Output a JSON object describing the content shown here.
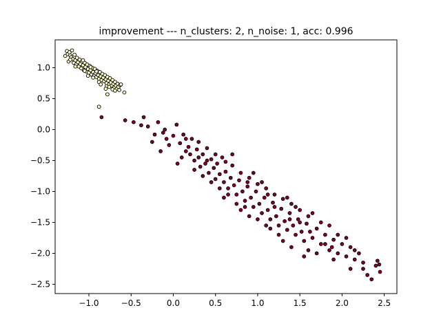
{
  "chart_data": {
    "type": "scatter",
    "title": "improvement --- n_clusters: 2, n_noise: 1, acc: 0.996",
    "xlabel": "",
    "ylabel": "",
    "xlim": [
      -1.4,
      2.65
    ],
    "ylim": [
      -2.65,
      1.45
    ],
    "xticks": [
      -1.0,
      -0.5,
      0.0,
      0.5,
      1.0,
      1.5,
      2.0,
      2.5
    ],
    "yticks": [
      -2.5,
      -2.0,
      -1.5,
      -1.0,
      -0.5,
      0.0,
      0.5,
      1.0
    ],
    "xtick_labels": [
      "−1.0",
      "−0.5",
      "0.0",
      "0.5",
      "1.0",
      "1.5",
      "2.0",
      "2.5"
    ],
    "ytick_labels": [
      "−2.5",
      "−2.0",
      "−1.5",
      "−1.0",
      "−0.5",
      "0.0",
      "0.5",
      "1.0"
    ],
    "grid": false,
    "series": [
      {
        "color": "#ffffcc",
        "edgecolor": "#000000",
        "points": [
          [
            -1.28,
            1.19
          ],
          [
            -1.26,
            1.27
          ],
          [
            -1.25,
            1.22
          ],
          [
            -1.24,
            1.1
          ],
          [
            -1.23,
            1.25
          ],
          [
            -1.22,
            1.2
          ],
          [
            -1.21,
            1.17
          ],
          [
            -1.2,
            1.28
          ],
          [
            -1.19,
            1.14
          ],
          [
            -1.18,
            1.08
          ],
          [
            -1.17,
            1.21
          ],
          [
            -1.16,
            1.12
          ],
          [
            -1.15,
            1.05
          ],
          [
            -1.14,
            1.16
          ],
          [
            -1.13,
            1.09
          ],
          [
            -1.12,
            1.02
          ],
          [
            -1.11,
            1.13
          ],
          [
            -1.1,
            1.06
          ],
          [
            -1.09,
            0.99
          ],
          [
            -1.08,
            1.1
          ],
          [
            -1.07,
            1.04
          ],
          [
            -1.06,
            0.96
          ],
          [
            -1.05,
            1.08
          ],
          [
            -1.04,
            1.01
          ],
          [
            -1.03,
            0.94
          ],
          [
            -1.02,
            1.05
          ],
          [
            -1.01,
            0.98
          ],
          [
            -1.0,
            0.92
          ],
          [
            -0.99,
            1.03
          ],
          [
            -0.98,
            0.96
          ],
          [
            -0.97,
            0.89
          ],
          [
            -0.96,
            1.0
          ],
          [
            -0.95,
            0.93
          ],
          [
            -0.94,
            0.87
          ],
          [
            -0.93,
            0.98
          ],
          [
            -0.92,
            0.91
          ],
          [
            -0.91,
            0.85
          ],
          [
            -0.9,
            0.95
          ],
          [
            -0.89,
            0.88
          ],
          [
            -0.88,
            0.82
          ],
          [
            -0.87,
            0.93
          ],
          [
            -0.86,
            0.86
          ],
          [
            -0.85,
            0.8
          ],
          [
            -0.84,
            0.9
          ],
          [
            -0.83,
            0.84
          ],
          [
            -0.82,
            0.78
          ],
          [
            -0.81,
            0.88
          ],
          [
            -0.8,
            0.81
          ],
          [
            -0.79,
            0.75
          ],
          [
            -0.78,
            0.85
          ],
          [
            -0.77,
            0.79
          ],
          [
            -0.76,
            0.73
          ],
          [
            -0.75,
            0.83
          ],
          [
            -0.74,
            0.76
          ],
          [
            -0.73,
            0.71
          ],
          [
            -0.72,
            0.8
          ],
          [
            -0.71,
            0.74
          ],
          [
            -0.7,
            0.68
          ],
          [
            -0.69,
            0.77
          ],
          [
            -0.68,
            0.71
          ],
          [
            -0.67,
            0.66
          ],
          [
            -0.66,
            0.74
          ],
          [
            -0.65,
            0.69
          ],
          [
            -0.64,
            0.64
          ],
          [
            -0.63,
            0.72
          ],
          [
            -0.62,
            0.73
          ],
          [
            -1.05,
            0.95
          ],
          [
            -0.95,
            0.84
          ],
          [
            -0.88,
            0.77
          ],
          [
            -0.79,
            0.7
          ],
          [
            -0.72,
            0.65
          ],
          [
            -0.69,
            0.63
          ],
          [
            -1.16,
            1.02
          ],
          [
            -1.07,
            1.12
          ],
          [
            -0.98,
            1.01
          ],
          [
            -0.91,
            0.94
          ],
          [
            -0.86,
            0.73
          ],
          [
            -0.8,
            0.66
          ],
          [
            -0.58,
            0.6
          ],
          [
            -0.78,
            0.57
          ],
          [
            -0.88,
            0.37
          ],
          [
            -1.22,
            1.13
          ],
          [
            -1.01,
            0.87
          ],
          [
            -0.76,
            0.69
          ]
        ]
      },
      {
        "color": "#800026",
        "edgecolor": "#000000",
        "points": [
          [
            -0.85,
            0.2
          ],
          [
            -0.57,
            0.15
          ],
          [
            -0.47,
            0.12
          ],
          [
            -0.38,
            0.07
          ],
          [
            -0.3,
            0.05
          ],
          [
            -0.25,
            -0.2
          ],
          [
            -0.22,
            -0.08
          ],
          [
            -0.18,
            0.12
          ],
          [
            -0.12,
            -0.05
          ],
          [
            -0.08,
            -0.15
          ],
          [
            -0.05,
            -0.25
          ],
          [
            0.0,
            -0.1
          ],
          [
            0.04,
            0.08
          ],
          [
            0.08,
            -0.22
          ],
          [
            0.12,
            -0.08
          ],
          [
            0.15,
            -0.35
          ],
          [
            0.18,
            -0.28
          ],
          [
            0.2,
            -0.4
          ],
          [
            0.22,
            -0.15
          ],
          [
            0.25,
            -0.5
          ],
          [
            0.28,
            -0.32
          ],
          [
            0.3,
            -0.45
          ],
          [
            0.32,
            -0.6
          ],
          [
            0.35,
            -0.4
          ],
          [
            0.38,
            -0.55
          ],
          [
            0.4,
            -0.3
          ],
          [
            0.42,
            -0.7
          ],
          [
            0.45,
            -0.48
          ],
          [
            0.48,
            -0.62
          ],
          [
            0.5,
            -0.8
          ],
          [
            0.52,
            -0.55
          ],
          [
            0.55,
            -0.72
          ],
          [
            0.58,
            -0.45
          ],
          [
            0.6,
            -0.85
          ],
          [
            0.62,
            -0.68
          ],
          [
            0.65,
            -0.95
          ],
          [
            0.68,
            -0.78
          ],
          [
            0.7,
            -0.58
          ],
          [
            0.72,
            -0.9
          ],
          [
            0.75,
            -1.05
          ],
          [
            0.78,
            -0.82
          ],
          [
            0.8,
            -0.7
          ],
          [
            0.82,
            -1.0
          ],
          [
            0.85,
            -1.15
          ],
          [
            0.88,
            -0.92
          ],
          [
            0.9,
            -0.78
          ],
          [
            0.92,
            -1.1
          ],
          [
            0.95,
            -1.25
          ],
          [
            0.98,
            -1.0
          ],
          [
            1.0,
            -0.88
          ],
          [
            1.02,
            -1.2
          ],
          [
            1.05,
            -1.35
          ],
          [
            1.08,
            -1.1
          ],
          [
            1.1,
            -0.95
          ],
          [
            1.12,
            -1.3
          ],
          [
            1.15,
            -1.45
          ],
          [
            1.18,
            -1.18
          ],
          [
            1.2,
            -1.05
          ],
          [
            1.22,
            -1.4
          ],
          [
            1.25,
            -1.55
          ],
          [
            1.28,
            -1.28
          ],
          [
            1.3,
            -1.12
          ],
          [
            1.32,
            -1.48
          ],
          [
            1.35,
            -1.62
          ],
          [
            1.38,
            -1.35
          ],
          [
            1.4,
            -1.2
          ],
          [
            1.42,
            -1.55
          ],
          [
            1.45,
            -1.7
          ],
          [
            1.48,
            -1.45
          ],
          [
            1.5,
            -1.3
          ],
          [
            1.52,
            -1.65
          ],
          [
            1.55,
            -1.8
          ],
          [
            1.58,
            -1.52
          ],
          [
            1.6,
            -1.4
          ],
          [
            1.65,
            -1.75
          ],
          [
            1.7,
            -1.6
          ],
          [
            1.75,
            -1.85
          ],
          [
            1.8,
            -1.7
          ],
          [
            1.85,
            -1.95
          ],
          [
            1.9,
            -1.78
          ],
          [
            1.95,
            -2.0
          ],
          [
            2.0,
            -1.85
          ],
          [
            2.05,
            -2.05
          ],
          [
            2.1,
            -1.9
          ],
          [
            2.15,
            -2.1
          ],
          [
            2.2,
            -2.0
          ],
          [
            2.25,
            -2.15
          ],
          [
            2.3,
            -2.35
          ],
          [
            2.35,
            -2.42
          ],
          [
            2.4,
            -2.2
          ],
          [
            2.42,
            -2.12
          ],
          [
            2.44,
            -2.18
          ],
          [
            0.1,
            -0.45
          ],
          [
            0.3,
            -0.2
          ],
          [
            0.5,
            -0.4
          ],
          [
            0.7,
            -0.4
          ],
          [
            0.6,
            -1.1
          ],
          [
            0.8,
            -1.3
          ],
          [
            0.95,
            -0.7
          ],
          [
            1.05,
            -0.85
          ],
          [
            1.15,
            -1.6
          ],
          [
            1.3,
            -1.8
          ],
          [
            1.45,
            -1.25
          ],
          [
            1.6,
            -1.95
          ],
          [
            1.75,
            -1.5
          ],
          [
            1.9,
            -2.1
          ],
          [
            2.05,
            -1.75
          ],
          [
            0.35,
            -0.75
          ],
          [
            0.55,
            -0.95
          ],
          [
            0.75,
            -1.2
          ],
          [
            0.9,
            -1.4
          ],
          [
            1.1,
            -1.55
          ],
          [
            1.25,
            -1.7
          ],
          [
            1.4,
            -1.9
          ],
          [
            1.55,
            -2.05
          ],
          [
            1.7,
            -2.0
          ],
          [
            1.85,
            -1.55
          ],
          [
            2.1,
            -2.25
          ],
          [
            -0.15,
            -0.35
          ],
          [
            0.05,
            -0.55
          ],
          [
            0.25,
            -0.65
          ],
          [
            0.45,
            -0.85
          ],
          [
            0.65,
            -1.05
          ],
          [
            0.85,
            -1.25
          ],
          [
            1.0,
            -1.45
          ],
          [
            1.2,
            -1.25
          ],
          [
            1.35,
            -1.1
          ],
          [
            1.5,
            -1.5
          ],
          [
            1.65,
            -1.35
          ],
          [
            1.8,
            -1.85
          ],
          [
            1.95,
            -1.7
          ],
          [
            2.15,
            -1.95
          ],
          [
            -0.35,
            0.2
          ],
          [
            -0.1,
            0.0
          ],
          [
            0.15,
            -0.15
          ],
          [
            0.4,
            -0.5
          ],
          [
            0.62,
            -0.52
          ],
          [
            0.88,
            -0.85
          ],
          [
            1.12,
            -1.05
          ],
          [
            1.38,
            -1.45
          ],
          [
            1.62,
            -1.65
          ],
          [
            1.88,
            -1.9
          ],
          [
            2.25,
            -2.25
          ],
          [
            2.45,
            -2.3
          ]
        ]
      }
    ]
  }
}
